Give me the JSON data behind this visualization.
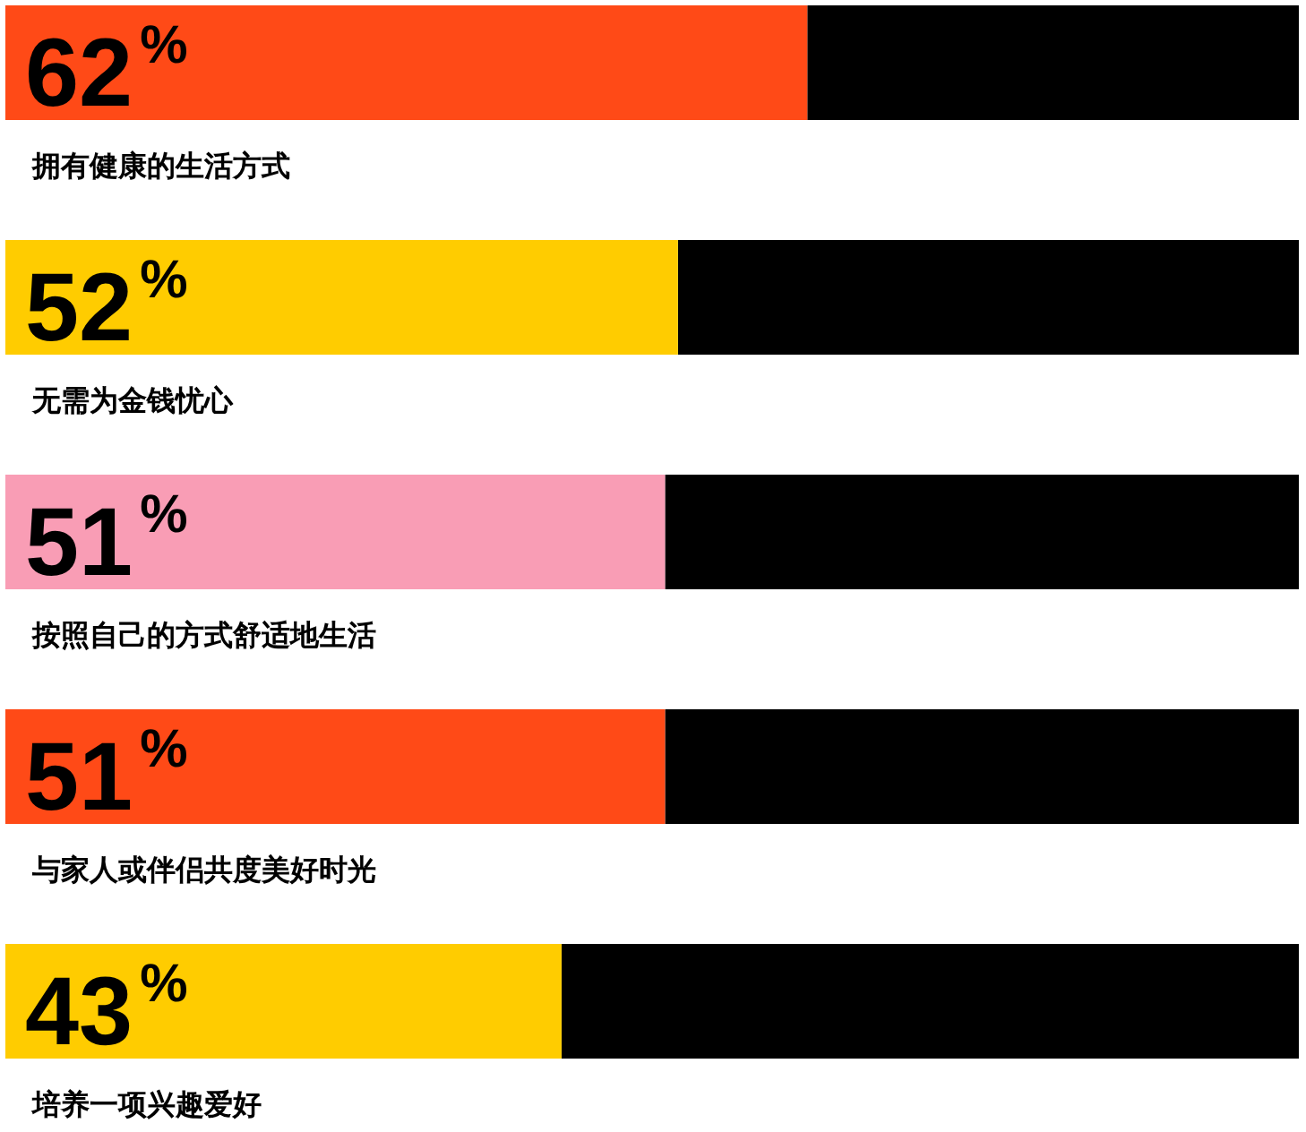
{
  "chart_data": {
    "type": "bar",
    "orientation": "horizontal",
    "categories": [
      "拥有健康的生活方式",
      "无需为金钱忧心",
      "按照自己的方式舒适地生活",
      "与家人或伴侣共度美好时光",
      "培养一项兴趣爱好"
    ],
    "values": [
      62,
      52,
      51,
      51,
      43
    ],
    "colors": [
      "#ff4a17",
      "#ffcc00",
      "#f99db5",
      "#ff4a17",
      "#ffcc00"
    ],
    "value_labels": [
      "62$^{%}$",
      "52$^{%}$",
      "51$^{%}$",
      "51$^{%}$",
      "43$^{%}$"
    ],
    "xlim": [
      0,
      100
    ]
  }
}
